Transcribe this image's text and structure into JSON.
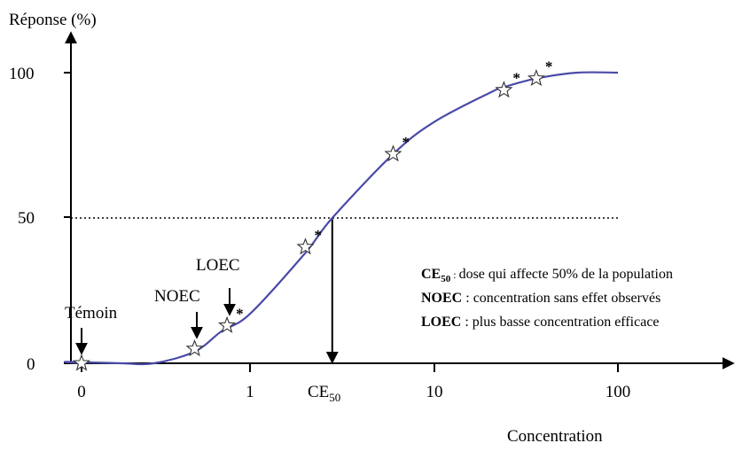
{
  "chart_data": {
    "type": "line",
    "ylabel": "Réponse (%)",
    "xlabel": "Concentration",
    "y_ticks": [
      "0",
      "50",
      "100"
    ],
    "x_ticks": [
      "0",
      "1",
      "10",
      "100"
    ],
    "x_scale": "log",
    "ylim": [
      0,
      100
    ],
    "curve": {
      "x": [
        0,
        0.1,
        0.2,
        0.3,
        0.5,
        0.7,
        1,
        2,
        2.8,
        6,
        10,
        20,
        24,
        36,
        60,
        100
      ],
      "y": [
        0,
        0.5,
        0,
        0,
        4,
        11,
        17,
        38,
        50,
        72,
        83,
        93,
        95,
        98,
        100,
        100
      ]
    },
    "points": {
      "x": [
        0,
        0.5,
        0.75,
        2,
        6,
        24,
        36
      ],
      "y": [
        0,
        5,
        13,
        40,
        72,
        94,
        98
      ],
      "asterisk": [
        false,
        false,
        true,
        true,
        true,
        true,
        true
      ]
    },
    "reference_line_y": 50,
    "ec50_x": 2.8,
    "ec50_label": {
      "main": "CE",
      "sub": "50"
    },
    "annotations": {
      "temoin": "Témoin",
      "noec": "NOEC",
      "loec": "LOEC",
      "asterisk": "*"
    },
    "legend": [
      {
        "term": "CE",
        "sub": "50",
        "sep": " : ",
        "desc": "dose qui affecte 50% de la population"
      },
      {
        "term": "NOEC",
        "sub": "",
        "sep": " : ",
        "desc": "concentration sans effet observés"
      },
      {
        "term": "LOEC",
        "sub": "",
        "sep": " : ",
        "desc": "plus basse concentration efficace"
      }
    ]
  }
}
